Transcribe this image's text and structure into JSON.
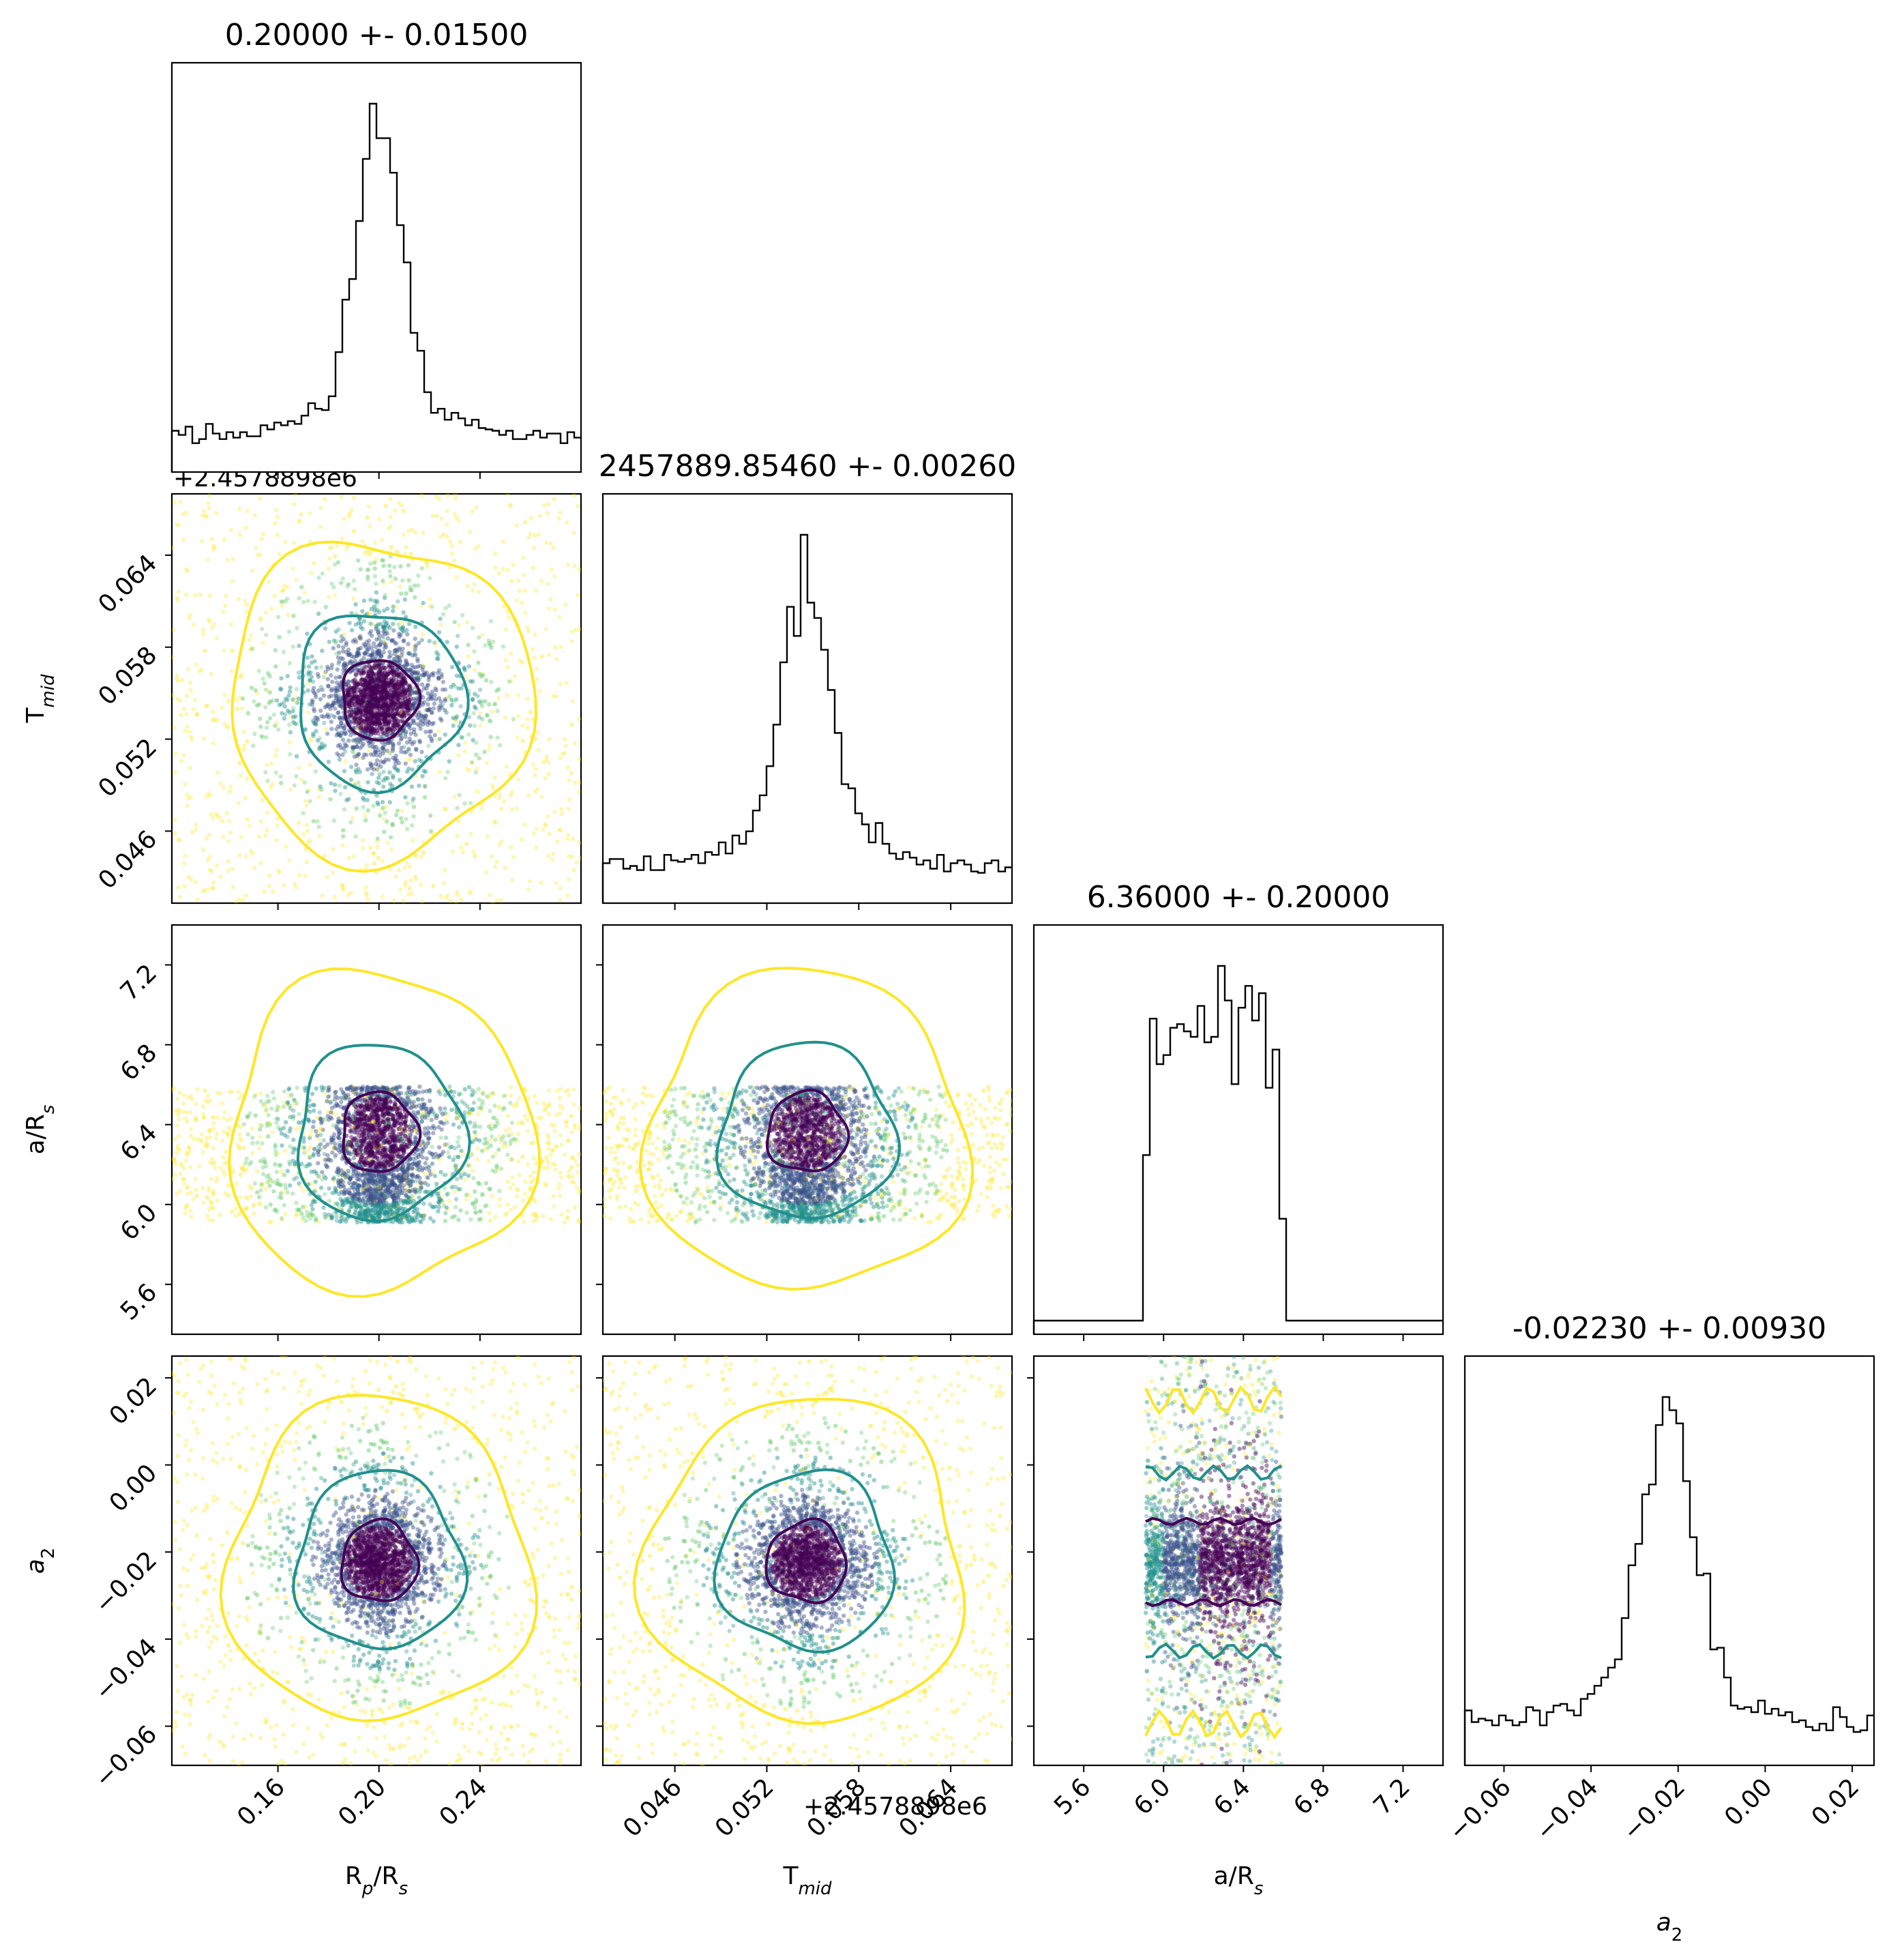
{
  "chart_data": {
    "type": "corner",
    "parameters": [
      {
        "key": "rp",
        "label": "R_p/R_s",
        "title": "0.20000 +- 0.01500",
        "center": 0.2,
        "sigma": 0.015,
        "range": [
          0.118,
          0.28
        ],
        "ticks": [
          0.16,
          0.2,
          0.24
        ],
        "tick_labels": [
          "0.16",
          "0.20",
          "0.24"
        ]
      },
      {
        "key": "tmid",
        "label": "T_mid",
        "title": "2457889.85460 +- 0.00260",
        "center": 0.0546,
        "sigma": 0.0026,
        "range": [
          0.0413,
          0.068
        ],
        "ticks": [
          0.046,
          0.052,
          0.058,
          0.064
        ],
        "tick_labels": [
          "0.046",
          "0.052",
          "0.058",
          "0.064"
        ],
        "offset_label": "+2.4578898e6"
      },
      {
        "key": "ars",
        "label": "a/R_s",
        "title": "6.36000 +- 0.20000",
        "center": 6.36,
        "sigma": 0.2,
        "range": [
          5.35,
          7.4
        ],
        "ticks": [
          5.6,
          6.0,
          6.4,
          6.8,
          7.2
        ],
        "tick_labels": [
          "5.6",
          "6.0",
          "6.4",
          "6.8",
          "7.2"
        ],
        "uniform_range": [
          5.91,
          6.59
        ]
      },
      {
        "key": "a2",
        "label": "a_2",
        "title": "-0.02230 +- 0.00930",
        "center": -0.0223,
        "sigma": 0.0093,
        "range": [
          -0.069,
          0.025
        ],
        "ticks": [
          -0.06,
          -0.04,
          -0.02,
          0.0,
          0.02
        ],
        "tick_labels": [
          "−0.06",
          "−0.04",
          "−0.02",
          "0.00",
          "0.02"
        ]
      }
    ],
    "points_colormap": [
      "#440154",
      "#3b528b",
      "#21908d",
      "#5dc863",
      "#fde725"
    ],
    "contour_colors": [
      "#440154",
      "#21908d",
      "#fde725"
    ]
  },
  "labels": {
    "rp": {
      "main": "R",
      "sub1": "p",
      "mid": "/R",
      "sub2": "s"
    },
    "tmid": {
      "main": "T",
      "sub1": "mid"
    },
    "ars": {
      "main": "a/R",
      "sub1": "s"
    },
    "a2": {
      "main": "a",
      "sub1": "2"
    }
  },
  "titles": {
    "rp": "0.20000 +- 0.01500",
    "tmid": "2457889.85460 +- 0.00260",
    "ars": "6.36000 +- 0.20000",
    "a2": "-0.02230 +- 0.00930"
  },
  "offsets": {
    "tmid_y": "+2.4578898e6",
    "tmid_x": "+2.4578898e6"
  }
}
